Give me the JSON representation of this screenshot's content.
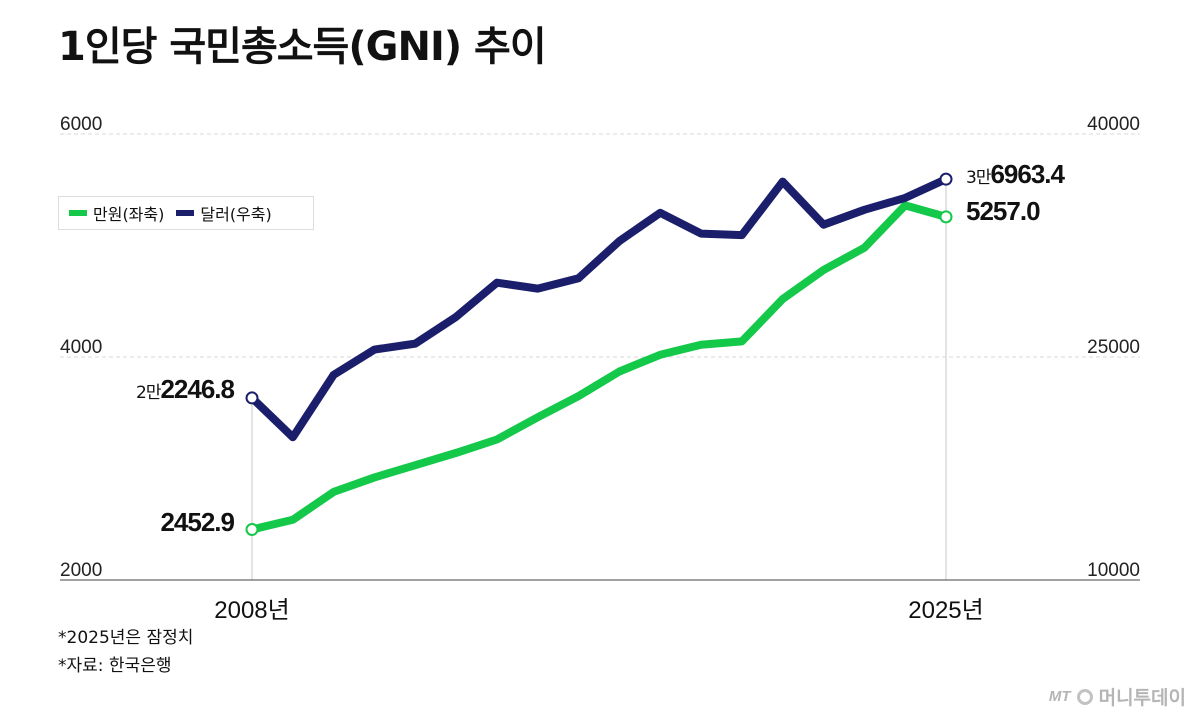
{
  "title": "1인당 국민총소득(GNI) 추이",
  "legend": [
    {
      "label": "만원(좌축)",
      "color": "#14c94a"
    },
    {
      "label": "달러(우축)",
      "color": "#1b1f6b"
    }
  ],
  "notes": [
    "*2025년은 잠정치",
    "*자료: 한국은행"
  ],
  "brand": {
    "mt": "MT",
    "name": "머니투데이"
  },
  "chart_data": {
    "type": "line",
    "x": [
      2008,
      2009,
      2010,
      2011,
      2012,
      2013,
      2014,
      2015,
      2016,
      2017,
      2018,
      2019,
      2020,
      2021,
      2022,
      2023,
      2024,
      2025
    ],
    "x_tick_labels": [
      "2008년",
      "2025년"
    ],
    "y_left": {
      "ylim": [
        2000,
        6000
      ],
      "ticks": [
        "2000",
        "4000",
        "6000"
      ]
    },
    "y_right": {
      "ylim": [
        10000,
        40000
      ],
      "ticks": [
        "10000",
        "25000",
        "40000"
      ]
    },
    "series": [
      {
        "name": "만원(좌축)",
        "axis": "left",
        "color": "#14c94a",
        "values": [
          2452.9,
          2540,
          2790,
          2920,
          3030,
          3140,
          3260,
          3460,
          3650,
          3870,
          4020,
          4110,
          4140,
          4520,
          4780,
          4980,
          5360,
          5257.0
        ]
      },
      {
        "name": "달러(우축)",
        "axis": "right",
        "color": "#1b1f6b",
        "values": [
          22246.8,
          19600,
          23800,
          25500,
          25900,
          27700,
          30000,
          29600,
          30300,
          32800,
          34700,
          33300,
          33200,
          36800,
          33900,
          34900,
          35700,
          36963.4
        ]
      }
    ],
    "end_labels": {
      "green_start": "2452.9",
      "green_end": "5257.0",
      "navy_start_small": "2만",
      "navy_start_num": "2246.8",
      "navy_end_small": "3만",
      "navy_end_num": "6963.4"
    },
    "grid": true
  }
}
